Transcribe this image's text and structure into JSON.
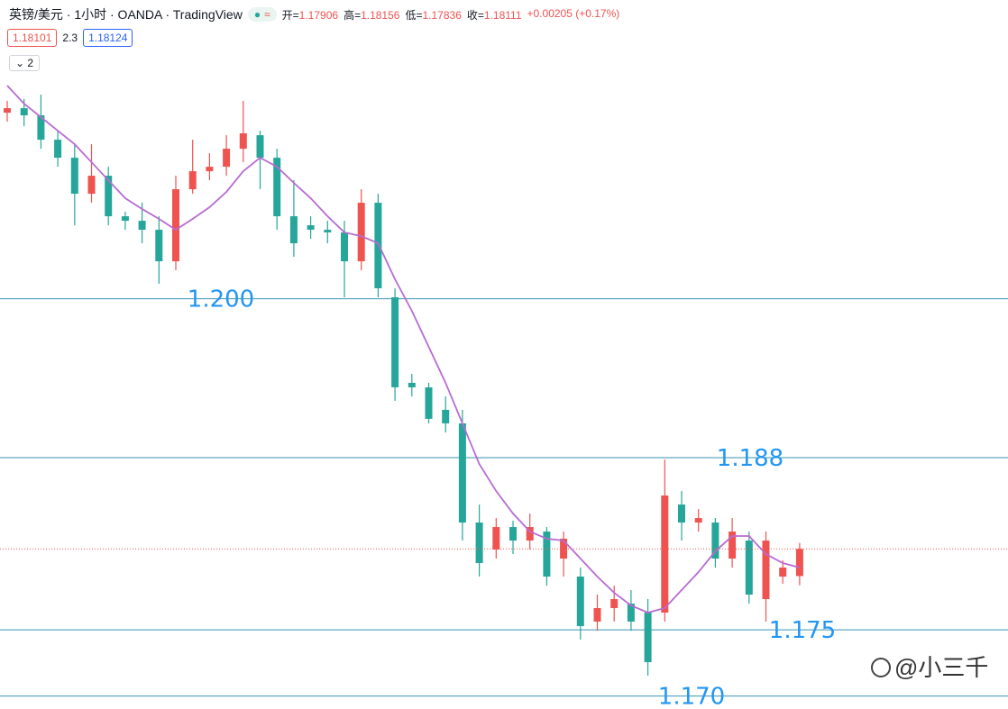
{
  "header": {
    "title": "英镑/美元 · 1小时 · OANDA · TradingView",
    "ohlc": [
      {
        "label": "开=",
        "value": "1.17906"
      },
      {
        "label": "高=",
        "value": "1.18156"
      },
      {
        "label": "低=",
        "value": "1.17836"
      },
      {
        "label": "收=",
        "value": "1.18111"
      }
    ],
    "change": "+0.00205 (+0.17%)",
    "bid": "1.18101",
    "spread": "2.3",
    "ask": "1.18124",
    "indicators": "2"
  },
  "chart_data": {
    "type": "candlestick",
    "ylim": [
      1.16902,
      1.22256
    ],
    "up_color": "#ef5350",
    "down_color": "#26a69a",
    "ma_color": "#b86bd1",
    "level_color": "#3a95b0",
    "label_color": "#2196f3",
    "last_color": "#ef5350",
    "open": [
      1.21405,
      1.21439,
      1.21385,
      1.21201,
      1.21065,
      1.20793,
      1.20929,
      1.20623,
      1.20589,
      1.20521,
      1.20283,
      1.20827,
      1.20963,
      1.20997,
      1.21133,
      1.21235,
      1.21065,
      1.20623,
      1.20555,
      1.20521,
      1.20501,
      1.20283,
      1.20725,
      1.20011,
      1.19365,
      1.19331,
      1.19161,
      1.19059,
      1.1831,
      1.18106,
      1.18276,
      1.18174,
      1.18242,
      1.18038,
      1.17902,
      1.17562,
      1.17664,
      1.17698,
      1.1763,
      1.1763,
      1.18446,
      1.1831,
      1.1831,
      1.18038,
      1.18174,
      1.17732,
      1.17902,
      1.17906
    ],
    "high": [
      1.21494,
      1.21508,
      1.21541,
      1.21269,
      1.21167,
      1.21167,
      1.20997,
      1.20657,
      1.20725,
      1.20623,
      1.20929,
      1.21201,
      1.21099,
      1.21235,
      1.21494,
      1.21269,
      1.21133,
      1.20895,
      1.20623,
      1.20589,
      1.20589,
      1.20827,
      1.20793,
      1.20079,
      1.19433,
      1.19365,
      1.19263,
      1.19161,
      1.18446,
      1.18344,
      1.18324,
      1.18378,
      1.18276,
      1.18242,
      1.1797,
      1.17766,
      1.17834,
      1.178,
      1.17732,
      1.18786,
      1.18548,
      1.18412,
      1.18344,
      1.18344,
      1.18242,
      1.18242,
      1.18025,
      1.18156
    ],
    "low": [
      1.21337,
      1.21303,
      1.21133,
      1.20997,
      1.20555,
      1.20725,
      1.20555,
      1.20521,
      1.20419,
      1.20113,
      1.20215,
      1.20793,
      1.20895,
      1.20929,
      1.21031,
      1.20827,
      1.20521,
      1.20317,
      1.20453,
      1.20419,
      1.20011,
      1.20215,
      1.20011,
      1.19229,
      1.19263,
      1.19059,
      1.1899,
      1.18174,
      1.17902,
      1.18038,
      1.18072,
      1.18106,
      1.17834,
      1.17902,
      1.17426,
      1.17494,
      1.17562,
      1.17494,
      1.17154,
      1.17562,
      1.18174,
      1.18242,
      1.1797,
      1.1797,
      1.17698,
      1.17562,
      1.17848,
      1.17836
    ],
    "close": [
      1.21439,
      1.21385,
      1.21201,
      1.21065,
      1.20793,
      1.20929,
      1.20623,
      1.20589,
      1.20521,
      1.20283,
      1.20827,
      1.20963,
      1.20997,
      1.21133,
      1.21249,
      1.21065,
      1.20623,
      1.20419,
      1.20521,
      1.20501,
      1.20283,
      1.20725,
      1.20079,
      1.19331,
      1.19331,
      1.19093,
      1.19059,
      1.1831,
      1.18004,
      1.18276,
      1.18174,
      1.18276,
      1.17902,
      1.18188,
      1.17528,
      1.17664,
      1.17732,
      1.17562,
      1.17256,
      1.18514,
      1.1831,
      1.18344,
      1.18038,
      1.18242,
      1.17766,
      1.18174,
      1.1797,
      1.18111
    ],
    "ma": [
      1.2161,
      1.21473,
      1.21371,
      1.21269,
      1.21167,
      1.21031,
      1.20895,
      1.20759,
      1.20678,
      1.20603,
      1.20521,
      1.20603,
      1.20691,
      1.20807,
      1.20963,
      1.21065,
      1.20997,
      1.20875,
      1.20759,
      1.20623,
      1.20501,
      1.20473,
      1.20419,
      1.20147,
      1.19909,
      1.19637,
      1.19365,
      1.19059,
      1.18752,
      1.18548,
      1.18378,
      1.18242,
      1.18188,
      1.18174,
      1.18038,
      1.17902,
      1.1778,
      1.17684,
      1.1763,
      1.17664,
      1.178,
      1.17936,
      1.18093,
      1.18208,
      1.18208,
      1.18072,
      1.18004,
      1.1797
    ],
    "levels": [
      {
        "value": 1.2,
        "label": "1.200"
      },
      1.188,
      1.175,
      {
        "value": 1.17,
        "label": "1.170"
      }
    ],
    "watermark": "@小三千"
  }
}
